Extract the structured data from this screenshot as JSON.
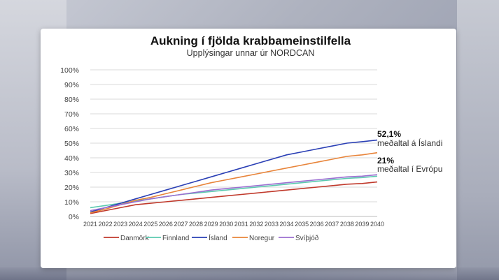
{
  "chart_data": {
    "type": "line",
    "title": "Aukning í fjölda krabbameinstilfella",
    "subtitle": "Upplýsingar unnar úr NORDCAN",
    "ylim": [
      0,
      100
    ],
    "yticks": [
      "0%",
      "10%",
      "20%",
      "30%",
      "40%",
      "50%",
      "60%",
      "70%",
      "80%",
      "90%",
      "100%"
    ],
    "x": [
      "2021",
      "2022",
      "2023",
      "2024",
      "2025",
      "2026",
      "2027",
      "2028",
      "2029",
      "2030",
      "2031",
      "2032",
      "2033",
      "2034",
      "2035",
      "2036",
      "2037",
      "2038",
      "2039",
      "2040"
    ],
    "grid": true,
    "legend_position": "bottom",
    "series": [
      {
        "name": "Danmörk",
        "color": "#c0392b",
        "values": [
          2,
          4,
          6,
          8,
          9,
          10,
          11,
          12,
          13,
          14,
          15,
          16,
          17,
          18,
          19,
          20,
          21,
          22,
          22.5,
          23.5
        ]
      },
      {
        "name": "Finnland",
        "color": "#5cc9b0",
        "values": [
          6,
          7.5,
          9,
          10.5,
          12,
          13.5,
          15,
          16,
          17,
          18,
          19,
          20,
          21,
          22,
          23,
          24,
          25,
          26,
          26.5,
          27.5
        ]
      },
      {
        "name": "Ísland",
        "color": "#2a3fb5",
        "values": [
          3,
          6,
          9,
          12,
          15,
          18,
          21,
          24,
          27,
          30,
          33,
          36,
          39,
          42,
          44,
          46,
          48,
          50,
          51,
          52.1
        ]
      },
      {
        "name": "Noregur",
        "color": "#e8843a",
        "values": [
          2.5,
          5,
          8,
          11,
          13,
          15.5,
          18,
          20.5,
          23,
          25,
          27,
          29,
          31,
          33,
          35,
          37,
          39,
          41,
          42,
          43.5
        ]
      },
      {
        "name": "Svíþjóð",
        "color": "#9b6fd1",
        "values": [
          4,
          6,
          8,
          10,
          12,
          13.5,
          15,
          16.5,
          18,
          19,
          20,
          21,
          22,
          23,
          24,
          25,
          26,
          27,
          27.5,
          28.5
        ]
      }
    ],
    "annotations": [
      {
        "value": "52,1%",
        "label": "meðaltal á Íslandi"
      },
      {
        "value": "21%",
        "label": "meðaltal í Evrópu"
      }
    ]
  }
}
